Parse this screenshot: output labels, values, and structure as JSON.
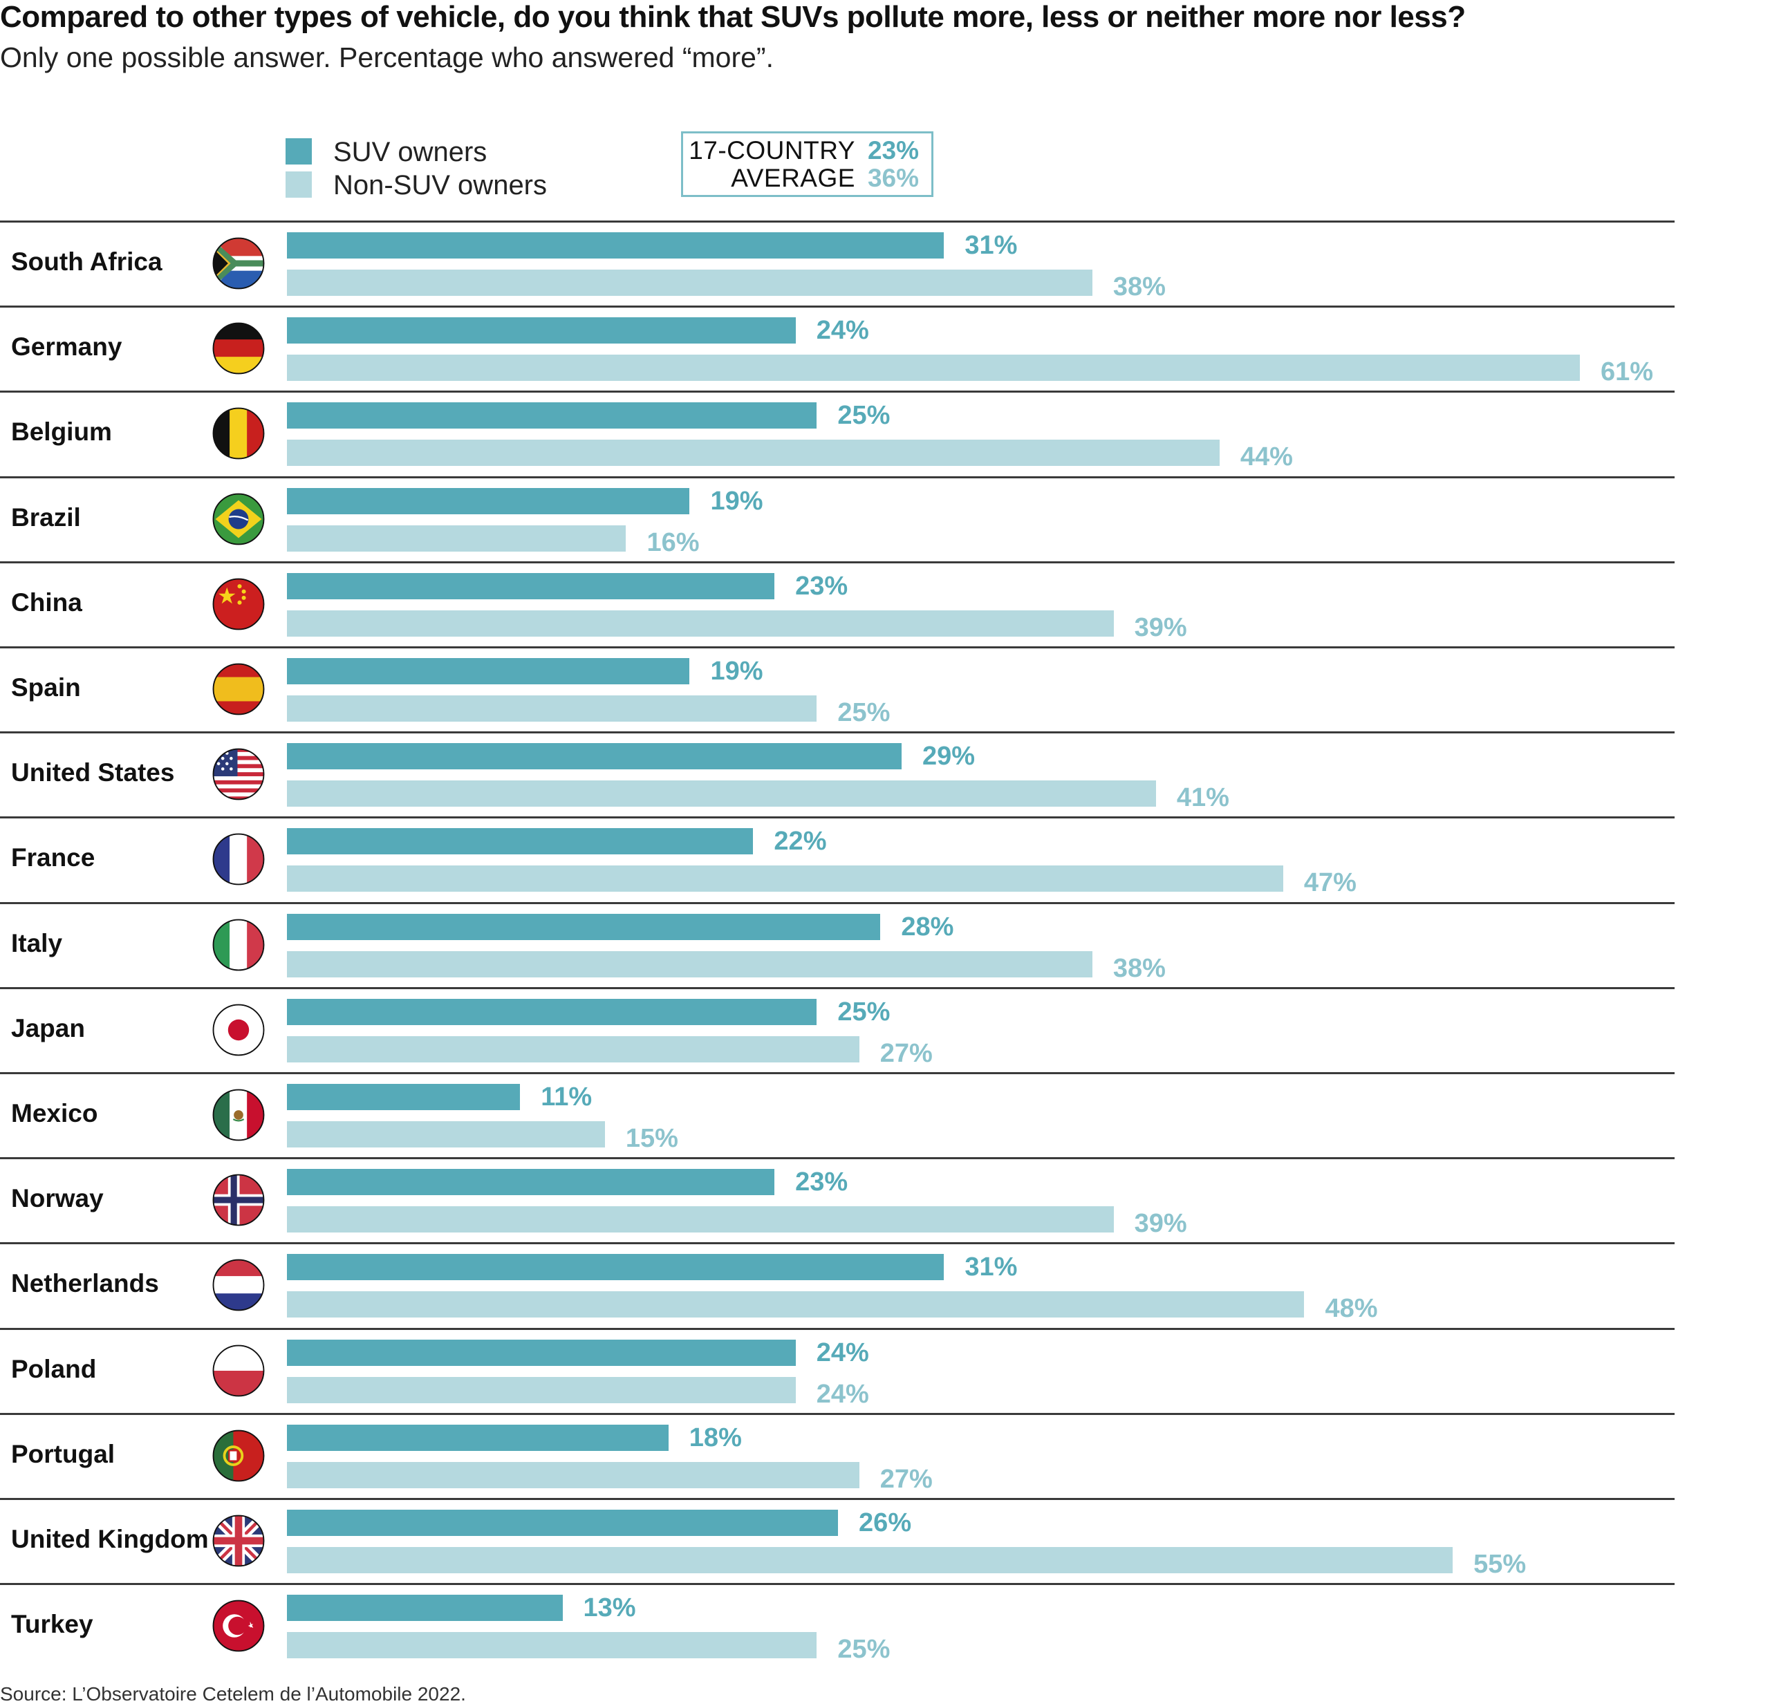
{
  "colors": {
    "suv": "#56aab8",
    "non_suv": "#b5d9df",
    "suv_label": "#56aab8",
    "non_suv_label": "#8cc3cd"
  },
  "chart_data": {
    "type": "bar",
    "orientation": "horizontal",
    "title": "Compared to other types of vehicle, do you think that SUVs pollute more, less or neither more nor less?",
    "subtitle": "Only one possible answer. Percentage who answered “more”.",
    "xlabel": "",
    "ylabel": "",
    "xlim": [
      0,
      61
    ],
    "grid": false,
    "legend_position": "top",
    "value_suffix": "%",
    "categories": [
      "South Africa",
      "Germany",
      "Belgium",
      "Brazil",
      "China",
      "Spain",
      "United States",
      "France",
      "Italy",
      "Japan",
      "Mexico",
      "Norway",
      "Netherlands",
      "Poland",
      "Portugal",
      "United Kingdom",
      "Turkey"
    ],
    "series": [
      {
        "name": "SUV owners",
        "values": [
          31,
          24,
          25,
          19,
          23,
          19,
          29,
          22,
          28,
          25,
          11,
          23,
          31,
          24,
          18,
          26,
          13
        ]
      },
      {
        "name": "Non-SUV owners",
        "values": [
          38,
          61,
          44,
          16,
          39,
          25,
          41,
          47,
          38,
          27,
          15,
          39,
          48,
          24,
          27,
          55,
          25
        ]
      }
    ],
    "annotation": {
      "label_line1": "17-COUNTRY",
      "label_line2": "AVERAGE",
      "suv_average": "23%",
      "non_suv_average": "36%"
    },
    "source": "Source: L’Observatoire Cetelem de l’Automobile 2022."
  },
  "flags": [
    "south-africa-flag-icon",
    "germany-flag-icon",
    "belgium-flag-icon",
    "brazil-flag-icon",
    "china-flag-icon",
    "spain-flag-icon",
    "united-states-flag-icon",
    "france-flag-icon",
    "italy-flag-icon",
    "japan-flag-icon",
    "mexico-flag-icon",
    "norway-flag-icon",
    "netherlands-flag-icon",
    "poland-flag-icon",
    "portugal-flag-icon",
    "united-kingdom-flag-icon",
    "turkey-flag-icon"
  ]
}
